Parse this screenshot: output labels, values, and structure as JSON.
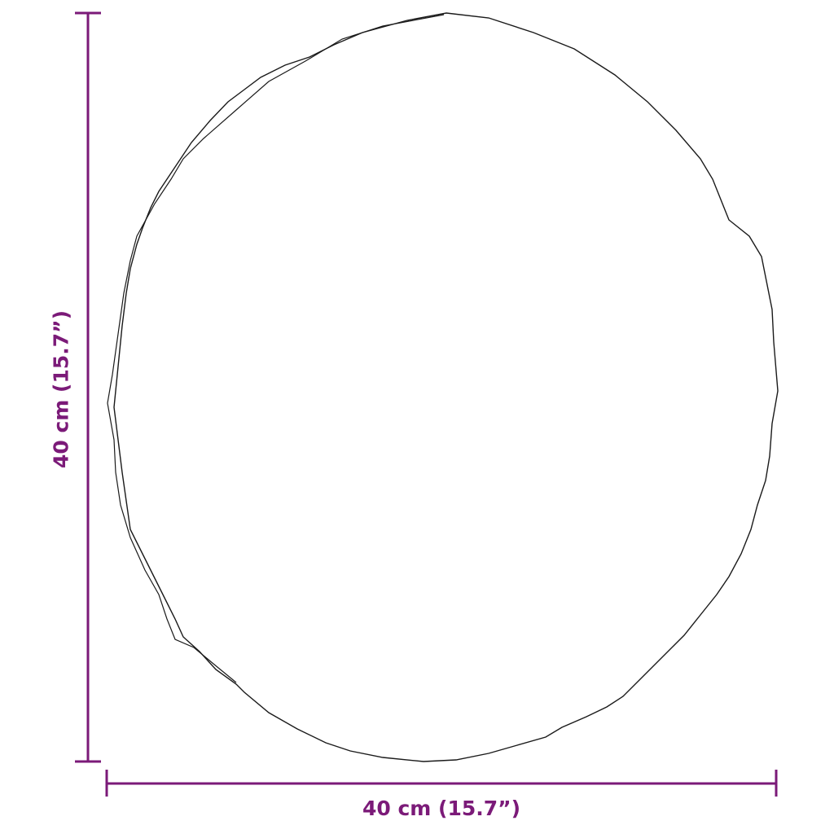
{
  "dimensions": {
    "height_label": "40 cm (15.7”)",
    "width_label": "40 cm (15.7”)"
  },
  "colors": {
    "dimension": "#7b1a78",
    "outline": "#1a1a1a"
  }
}
